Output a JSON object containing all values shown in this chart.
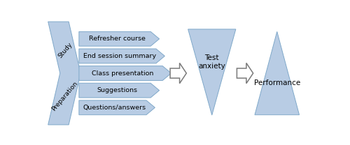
{
  "bg_color": "#ffffff",
  "shape_fill": "#b8cce4",
  "shape_edge": "#7fa8c9",
  "outline_arrow_edge": "#7a7a7a",
  "arrow_labels": [
    "Refresher course",
    "End session summary",
    "Class presentation",
    "Suggestions",
    "Questions/answers"
  ],
  "chevron_labels": [
    "Study",
    "Preparation"
  ],
  "triangle_labels": [
    "Test\nanxiety",
    "Performance"
  ],
  "fig_width": 5.0,
  "fig_height": 2.08,
  "dpi": 100
}
